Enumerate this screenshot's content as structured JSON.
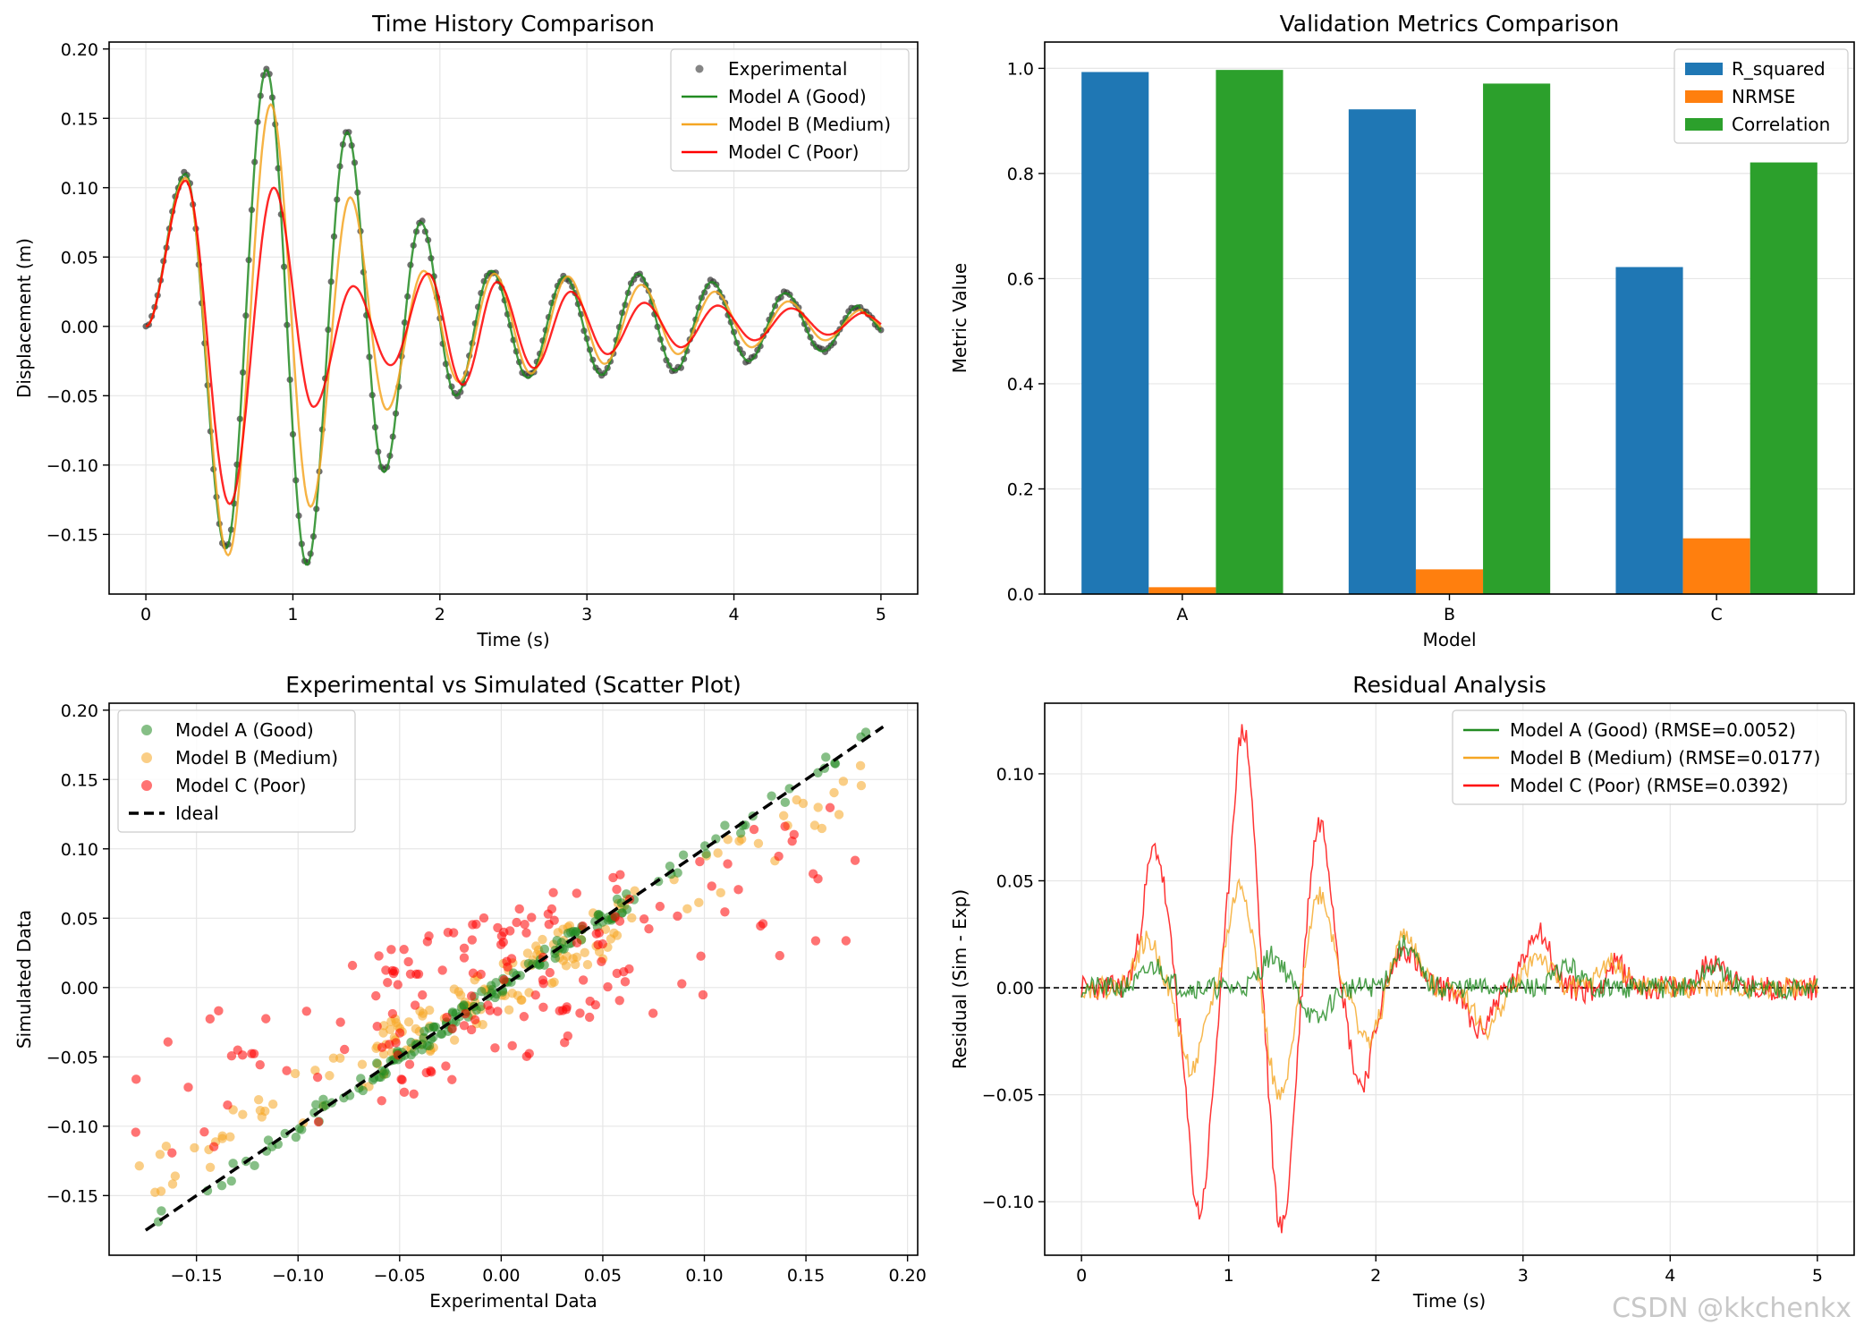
{
  "watermark": "CSDN @kkchenkx",
  "colors": {
    "green": "#228B22",
    "orange": "#F5A623",
    "red": "#FF0000",
    "black": "#333333",
    "bar_blue": "#1f77b4",
    "bar_orange": "#ff7f0e",
    "bar_green": "#2ca02c",
    "grid": "#e6e6e6"
  },
  "panels": {
    "time_history": {
      "title": "Time History Comparison",
      "xlabel": "Time (s)",
      "ylabel": "Displacement (m)"
    },
    "metrics": {
      "title": "Validation Metrics Comparison",
      "xlabel": "Model",
      "ylabel": "Metric Value"
    },
    "scatter": {
      "title": "Experimental vs Simulated (Scatter Plot)",
      "xlabel": "Experimental Data",
      "ylabel": "Simulated Data"
    },
    "residual": {
      "title": "Residual Analysis",
      "xlabel": "Time (s)",
      "ylabel": "Residual (Sim - Exp)"
    }
  },
  "chart_data": [
    {
      "type": "line",
      "title": "Time History Comparison",
      "xlabel": "Time (s)",
      "ylabel": "Displacement (m)",
      "xlim": [
        -0.25,
        5.25
      ],
      "ylim": [
        -0.193,
        0.205
      ],
      "xticks": [
        0,
        1,
        2,
        3,
        4,
        5
      ],
      "yticks": [
        -0.15,
        -0.1,
        -0.05,
        0.0,
        0.05,
        0.1,
        0.15,
        0.2
      ],
      "ytick_labels": [
        "−0.15",
        "−0.10",
        "−0.05",
        "0.00",
        "0.05",
        "0.10",
        "0.15",
        "0.20"
      ],
      "legend": "top-right",
      "grid": true,
      "series": [
        {
          "name": "Experimental",
          "kind": "points",
          "color": "#333333",
          "x": [
            0.0,
            0.1,
            0.2,
            0.28,
            0.35,
            0.45,
            0.57,
            0.65,
            0.75,
            0.83,
            0.9,
            1.0,
            1.1,
            1.2,
            1.3,
            1.37,
            1.45,
            1.55,
            1.62,
            1.72,
            1.85,
            1.95,
            2.05,
            2.12,
            2.22,
            2.35,
            2.45,
            2.6,
            2.7,
            2.85,
            2.95,
            3.1,
            3.2,
            3.35,
            3.45,
            3.6,
            3.7,
            3.85,
            3.95,
            4.1,
            4.2,
            4.35,
            4.45,
            4.6,
            4.7,
            4.85,
            5.0
          ],
          "y": [
            0.0,
            0.035,
            0.09,
            0.108,
            0.08,
            -0.02,
            -0.16,
            -0.1,
            0.07,
            0.182,
            0.1,
            -0.06,
            -0.17,
            -0.08,
            0.08,
            0.138,
            0.09,
            -0.05,
            -0.1,
            -0.03,
            0.07,
            0.04,
            -0.02,
            -0.045,
            -0.01,
            0.037,
            0.01,
            -0.035,
            -0.02,
            0.035,
            0.02,
            -0.035,
            -0.01,
            0.038,
            0.02,
            -0.033,
            -0.015,
            0.03,
            0.015,
            -0.02,
            -0.01,
            0.022,
            0.01,
            -0.018,
            -0.01,
            0.012,
            -0.005
          ]
        }
      ],
      "models": [
        {
          "name": "Model A (Good)",
          "color": "#228B22",
          "amp": [
            0.11,
            0.185,
            0.14,
            0.075,
            0.04,
            0.036,
            0.038,
            0.032,
            0.024,
            0.015
          ],
          "peak_t": [
            0.27,
            0.82,
            1.37,
            1.87,
            2.35,
            2.85,
            3.35,
            3.85,
            4.35,
            4.85
          ],
          "trough": [
            -0.16,
            -0.172,
            -0.105,
            -0.05,
            -0.037,
            -0.035,
            -0.032,
            -0.025,
            -0.018
          ]
        },
        {
          "name": "Model B (Medium)",
          "color": "#F5A623",
          "amp": [
            0.107,
            0.16,
            0.093,
            0.04,
            0.038,
            0.036,
            0.03,
            0.025,
            0.018,
            0.012
          ],
          "peak_t": [
            0.27,
            0.85,
            1.39,
            1.89,
            2.37,
            2.87,
            3.37,
            3.87,
            4.37,
            4.87
          ],
          "trough": [
            -0.165,
            -0.13,
            -0.06,
            -0.04,
            -0.034,
            -0.027,
            -0.02,
            -0.015,
            -0.01
          ]
        },
        {
          "name": "Model C (Poor)",
          "color": "#FF0000",
          "amp": [
            0.105,
            0.1,
            0.029,
            0.038,
            0.032,
            0.025,
            0.017,
            0.015,
            0.013,
            0.01
          ],
          "peak_t": [
            0.27,
            0.87,
            1.41,
            1.92,
            2.39,
            2.89,
            3.39,
            3.89,
            4.39,
            4.89
          ],
          "trough": [
            -0.128,
            -0.058,
            -0.028,
            -0.042,
            -0.03,
            -0.02,
            -0.015,
            -0.01,
            -0.006
          ]
        }
      ]
    },
    {
      "type": "bar",
      "title": "Validation Metrics Comparison",
      "xlabel": "Model",
      "ylabel": "Metric Value",
      "categories": [
        "A",
        "B",
        "C"
      ],
      "ylim": [
        0,
        1.05
      ],
      "yticks": [
        0.0,
        0.2,
        0.4,
        0.6,
        0.8,
        1.0
      ],
      "ytick_labels": [
        "0.0",
        "0.2",
        "0.4",
        "0.6",
        "0.8",
        "1.0"
      ],
      "legend": "top-right",
      "grid": true,
      "series": [
        {
          "name": "R_squared",
          "color": "#1f77b4",
          "values": [
            0.993,
            0.922,
            0.622
          ]
        },
        {
          "name": "NRMSE",
          "color": "#ff7f0e",
          "values": [
            0.013,
            0.047,
            0.106
          ]
        },
        {
          "name": "Correlation",
          "color": "#2ca02c",
          "values": [
            0.997,
            0.971,
            0.821
          ]
        }
      ]
    },
    {
      "type": "scatter",
      "title": "Experimental vs Simulated (Scatter Plot)",
      "xlabel": "Experimental Data",
      "ylabel": "Simulated Data",
      "xlim": [
        -0.193,
        0.205
      ],
      "ylim": [
        -0.193,
        0.205
      ],
      "xticks": [
        -0.15,
        -0.1,
        -0.05,
        0.0,
        0.05,
        0.1,
        0.15,
        0.2
      ],
      "xtick_labels": [
        "−0.15",
        "−0.10",
        "−0.05",
        "0.00",
        "0.05",
        "0.10",
        "0.15",
        "0.20"
      ],
      "yticks": [
        -0.15,
        -0.1,
        -0.05,
        0.0,
        0.05,
        0.1,
        0.15,
        0.2
      ],
      "ytick_labels": [
        "−0.15",
        "−0.10",
        "−0.05",
        "0.00",
        "0.05",
        "0.10",
        "0.15",
        "0.20"
      ],
      "legend": "top-left",
      "grid": true,
      "series": [
        {
          "name": "Model A (Good)",
          "color": "#228B22",
          "slope": 1.0,
          "spread": 0.007
        },
        {
          "name": "Model B (Medium)",
          "color": "#F5A623",
          "slope": 0.8,
          "spread": 0.02
        },
        {
          "name": "Model C (Poor)",
          "color": "#FF0000",
          "slope": 0.5,
          "spread": 0.035
        },
        {
          "name": "Ideal",
          "color": "#000000",
          "line": [
            [
              -0.175,
              -0.175
            ],
            [
              0.188,
              0.188
            ]
          ]
        }
      ]
    },
    {
      "type": "line",
      "title": "Residual Analysis",
      "xlabel": "Time (s)",
      "ylabel": "Residual (Sim - Exp)",
      "xlim": [
        -0.25,
        5.25
      ],
      "ylim": [
        -0.125,
        0.133
      ],
      "xticks": [
        0,
        1,
        2,
        3,
        4,
        5
      ],
      "yticks": [
        -0.1,
        -0.05,
        0.0,
        0.05,
        0.1
      ],
      "ytick_labels": [
        "−0.10",
        "−0.05",
        "0.00",
        "0.05",
        "0.10"
      ],
      "legend": "top-right",
      "grid": true,
      "series": [
        {
          "name": "Model A (Good) (RMSE=0.0052)",
          "color": "#228B22",
          "peaks": [
            [
              0.5,
              0.01
            ],
            [
              1.05,
              0.0
            ],
            [
              1.3,
              0.015
            ],
            [
              1.6,
              -0.015
            ],
            [
              2.2,
              0.02
            ],
            [
              3.3,
              0.01
            ],
            [
              4.3,
              0.01
            ]
          ],
          "noise": 0.005
        },
        {
          "name": "Model B (Medium) (RMSE=0.0177)",
          "color": "#F5A623",
          "peaks": [
            [
              0.45,
              0.022
            ],
            [
              0.75,
              -0.038
            ],
            [
              1.08,
              0.048
            ],
            [
              1.35,
              -0.052
            ],
            [
              1.62,
              0.044
            ],
            [
              1.95,
              -0.025
            ],
            [
              2.2,
              0.025
            ],
            [
              2.75,
              -0.02
            ],
            [
              3.1,
              0.015
            ],
            [
              3.6,
              0.012
            ]
          ],
          "noise": 0.005
        },
        {
          "name": "Model C (Poor) (RMSE=0.0392)",
          "color": "#FF0000",
          "peaks": [
            [
              0.5,
              0.065
            ],
            [
              0.8,
              -0.105
            ],
            [
              1.1,
              0.121
            ],
            [
              1.36,
              -0.113
            ],
            [
              1.62,
              0.078
            ],
            [
              1.9,
              -0.045
            ],
            [
              2.2,
              0.018
            ],
            [
              2.7,
              -0.02
            ],
            [
              3.1,
              0.028
            ],
            [
              3.55,
              -0.01
            ],
            [
              3.6,
              0.018
            ],
            [
              4.3,
              0.013
            ]
          ],
          "noise": 0.006
        },
        {
          "name": "Zero",
          "color": "#000000",
          "y": 0
        }
      ]
    }
  ]
}
